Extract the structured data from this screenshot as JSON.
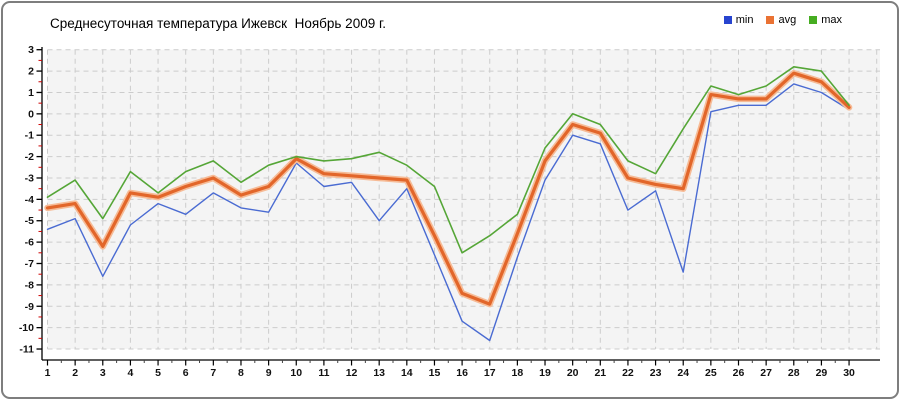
{
  "title": "Среднесуточная температура Ижевск  Ноябрь 2009 г.",
  "legend": {
    "position": "top-right",
    "items": [
      {
        "label": "min",
        "swatch_color": "#2744cf"
      },
      {
        "label": "avg",
        "swatch_color": "#ea7233"
      },
      {
        "label": "max",
        "swatch_color": "#46ad21"
      }
    ]
  },
  "colors": {
    "plot_background": "#f4f4f4",
    "grid": "#cccccc",
    "axis": "#000000",
    "minor_y_tick": "#cc0000",
    "minor_x_tick": "#444444",
    "tick_label": "#111111",
    "frame_border": "#7e7e7e"
  },
  "chart_data": {
    "type": "line",
    "title": "Среднесуточная температура Ижевск  Ноябрь 2009 г.",
    "xlabel": "",
    "ylabel": "",
    "x": [
      1,
      2,
      3,
      4,
      5,
      6,
      7,
      8,
      9,
      10,
      11,
      12,
      13,
      14,
      15,
      16,
      17,
      18,
      19,
      20,
      21,
      22,
      23,
      24,
      25,
      26,
      27,
      28,
      29,
      30
    ],
    "xlim": [
      1,
      30
    ],
    "ylim": [
      -11,
      3
    ],
    "ytick_step": 1,
    "grid": true,
    "grid_style": "dashed",
    "legend_position": "top-right",
    "series": [
      {
        "name": "min",
        "color": "#4a6bd2",
        "width": 1.4,
        "values": [
          -5.4,
          -4.9,
          -7.6,
          -5.2,
          -4.2,
          -4.7,
          -3.7,
          -4.4,
          -4.6,
          -2.3,
          -3.4,
          -3.2,
          -5.0,
          -3.5,
          -6.6,
          -9.7,
          -10.6,
          -6.7,
          -3.1,
          -1.0,
          -1.4,
          -4.5,
          -3.6,
          -7.4,
          0.1,
          0.4,
          0.4,
          1.4,
          1.0,
          0.2
        ]
      },
      {
        "name": "avg",
        "color": "#e2662a",
        "width": 3.2,
        "halo_color": "#f6bb96",
        "halo_width": 6.5,
        "values": [
          -4.4,
          -4.2,
          -6.2,
          -3.7,
          -3.9,
          -3.4,
          -3.0,
          -3.8,
          -3.4,
          -2.1,
          -2.8,
          -2.9,
          -3.0,
          -3.1,
          -5.7,
          -8.4,
          -8.9,
          -5.6,
          -2.2,
          -0.5,
          -0.9,
          -3.0,
          -3.3,
          -3.5,
          0.9,
          0.7,
          0.7,
          1.9,
          1.5,
          0.3
        ]
      },
      {
        "name": "max",
        "color": "#55a637",
        "width": 1.6,
        "values": [
          -3.9,
          -3.1,
          -4.9,
          -2.7,
          -3.7,
          -2.7,
          -2.2,
          -3.2,
          -2.4,
          -2.0,
          -2.2,
          -2.1,
          -1.8,
          -2.4,
          -3.4,
          -6.5,
          -5.7,
          -4.7,
          -1.6,
          0.0,
          -0.5,
          -2.2,
          -2.8,
          -0.7,
          1.3,
          0.9,
          1.3,
          2.2,
          2.0,
          0.4
        ]
      }
    ]
  }
}
